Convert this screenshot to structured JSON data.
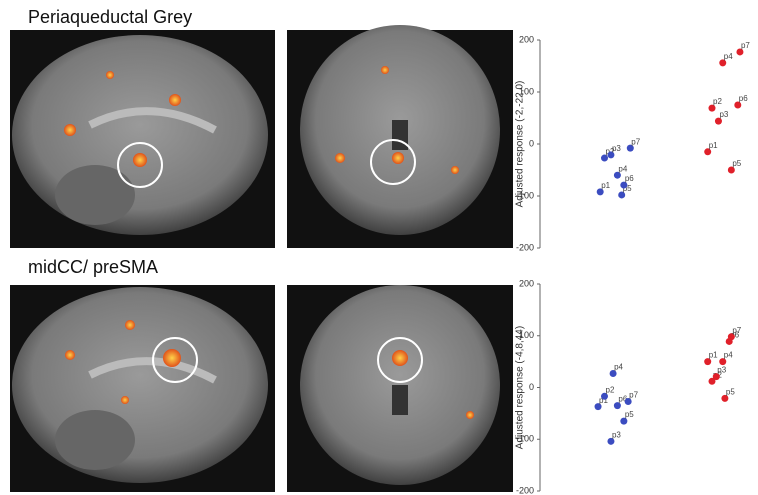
{
  "chart_data": [
    {
      "type": "scatter",
      "title": "Periaqueductal Grey",
      "y_label": "Adjusted response (-2,-22,0)",
      "ylim": [
        -200,
        200
      ],
      "yticks": [
        -200,
        -100,
        0,
        100,
        200
      ],
      "xlim": [
        0,
        10
      ],
      "series": [
        {
          "color": "#3b4cc0",
          "labels": [
            "p1",
            "p2",
            "p3",
            "p4",
            "p5",
            "p6",
            "p7"
          ],
          "x": [
            2.8,
            3.0,
            3.3,
            3.6,
            3.8,
            3.9,
            4.2
          ],
          "values": [
            -92,
            -27,
            -21,
            -60,
            -98,
            -79,
            -8
          ]
        },
        {
          "color": "#e0202a",
          "labels": [
            "p1",
            "p2",
            "p3",
            "p4",
            "p5",
            "p6",
            "p7"
          ],
          "x": [
            7.8,
            8.0,
            8.3,
            8.5,
            8.9,
            9.2,
            9.3
          ],
          "values": [
            -15,
            69,
            44,
            156,
            -50,
            75,
            177
          ]
        }
      ]
    },
    {
      "type": "scatter",
      "title": "midCC/ preSMA",
      "y_label": "Adjusted response (-4,8,44)",
      "ylim": [
        -200,
        200
      ],
      "yticks": [
        -200,
        -100,
        0,
        100,
        200
      ],
      "xlim": [
        0,
        10
      ],
      "series": [
        {
          "color": "#3b4cc0",
          "labels": [
            "p1",
            "p2",
            "p3",
            "p4",
            "p5",
            "p6",
            "p7"
          ],
          "x": [
            2.7,
            3.0,
            3.3,
            3.4,
            3.9,
            3.6,
            4.1
          ],
          "values": [
            -37,
            -17,
            -104,
            27,
            -65,
            -35,
            -27
          ]
        },
        {
          "color": "#e0202a",
          "labels": [
            "p1",
            "p2",
            "p3",
            "p4",
            "p5",
            "p6",
            "p7"
          ],
          "x": [
            7.8,
            8.0,
            8.2,
            8.5,
            8.6,
            8.8,
            8.9
          ],
          "values": [
            50,
            12,
            21,
            50,
            -21,
            89,
            98
          ]
        }
      ]
    }
  ]
}
